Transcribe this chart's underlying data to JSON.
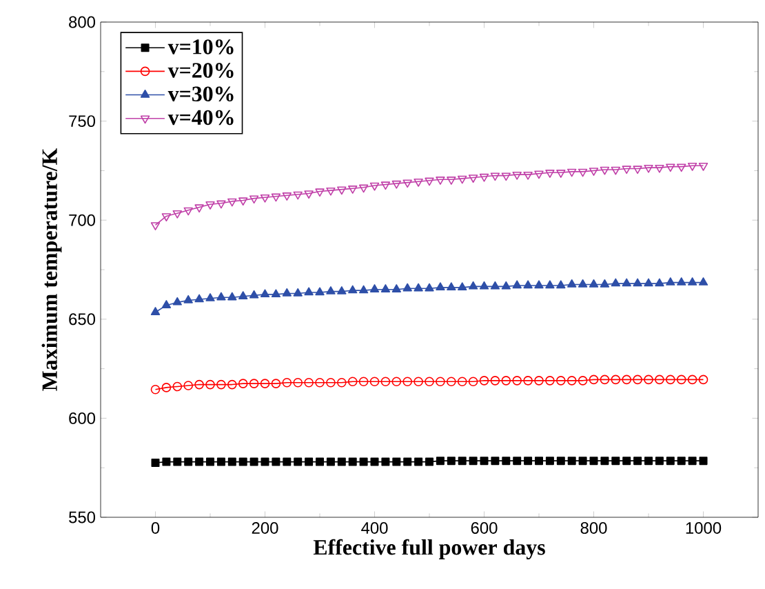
{
  "chart_data": {
    "type": "line",
    "xlabel": "Effective full power days",
    "ylabel": "Maximum temperature/K",
    "x": [
      0,
      20,
      40,
      60,
      80,
      100,
      120,
      140,
      160,
      180,
      200,
      220,
      240,
      260,
      280,
      300,
      320,
      340,
      360,
      380,
      400,
      420,
      440,
      460,
      480,
      500,
      520,
      540,
      560,
      580,
      600,
      620,
      640,
      660,
      680,
      700,
      720,
      740,
      760,
      780,
      800,
      820,
      840,
      860,
      880,
      900,
      920,
      940,
      960,
      980,
      1000
    ],
    "series": [
      {
        "name": "v=10%",
        "color": "#000000",
        "marker": "square",
        "values": [
          577.5,
          578,
          578,
          578,
          578,
          578,
          578,
          578,
          578,
          578,
          578,
          578,
          578,
          578,
          578,
          578,
          578,
          578,
          578,
          578,
          578,
          578,
          578,
          578,
          578,
          578,
          578.5,
          578.5,
          578.5,
          578.5,
          578.5,
          578.5,
          578.5,
          578.5,
          578.5,
          578.5,
          578.5,
          578.5,
          578.5,
          578.5,
          578.5,
          578.5,
          578.5,
          578.5,
          578.5,
          578.5,
          578.5,
          578.5,
          578.5,
          578.5,
          578.5
        ]
      },
      {
        "name": "v=20%",
        "color": "#ff0000",
        "marker": "circle",
        "values": [
          614.5,
          615.5,
          616,
          616.5,
          617,
          617,
          617,
          617,
          617.5,
          617.5,
          617.5,
          617.5,
          618,
          618,
          618,
          618,
          618,
          618,
          618.5,
          618.5,
          618.5,
          618.5,
          618.5,
          618.5,
          618.5,
          618.5,
          618.5,
          618.5,
          618.5,
          618.5,
          619,
          619,
          619,
          619,
          619,
          619,
          619,
          619,
          619,
          619,
          619.5,
          619.5,
          619.5,
          619.5,
          619.5,
          619.5,
          619.5,
          619.5,
          619.5,
          619.5,
          619.5
        ]
      },
      {
        "name": "v=30%",
        "color": "#2e4fa8",
        "marker": "triangle",
        "values": [
          653.5,
          657,
          658.5,
          659.5,
          660,
          660.5,
          661,
          661,
          661.5,
          662,
          662.5,
          662.5,
          663,
          663,
          663.5,
          663.5,
          664,
          664,
          664.5,
          664.5,
          665,
          665,
          665,
          665.5,
          665.5,
          665.5,
          666,
          666,
          666,
          666.5,
          666.5,
          666.5,
          666.5,
          667,
          667,
          667,
          667,
          667,
          667.5,
          667.5,
          667.5,
          667.5,
          668,
          668,
          668,
          668,
          668,
          668.5,
          668.5,
          668.5,
          668.5
        ]
      },
      {
        "name": "v=40%",
        "color": "#c040a8",
        "marker": "triangle_down",
        "values": [
          697.5,
          702,
          703.5,
          705,
          706.5,
          708,
          708.5,
          709.5,
          710,
          711,
          711.5,
          712,
          712.5,
          713,
          713.5,
          714.5,
          715,
          715.5,
          716,
          716.5,
          717.5,
          718,
          718.5,
          719,
          719.5,
          720,
          720.5,
          720.5,
          721,
          721.5,
          722,
          722.5,
          722.5,
          723,
          723,
          723.5,
          724,
          724,
          724.5,
          724.5,
          725,
          725.5,
          725.5,
          726,
          726,
          726.5,
          726.5,
          727,
          727,
          727.5,
          727.5
        ]
      }
    ],
    "xlim": [
      -100,
      1100
    ],
    "ylim": [
      550,
      800
    ],
    "xticks": [
      0,
      200,
      400,
      600,
      800,
      1000
    ],
    "yticks": [
      550,
      600,
      650,
      700,
      750,
      800
    ],
    "legend": "top left",
    "grid": false,
    "line_style": "solid"
  }
}
